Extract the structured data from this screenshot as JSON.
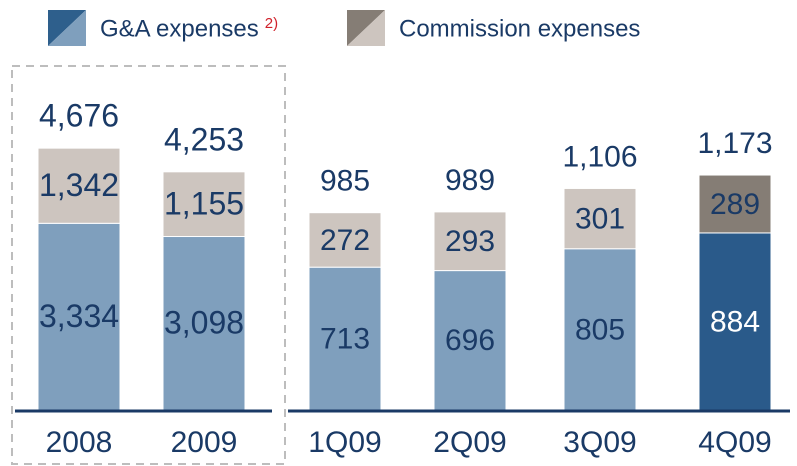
{
  "legend": [
    {
      "name": "G&A expenses",
      "note": "2)",
      "colors": [
        "#2e5f8c",
        "#7f9fbd"
      ]
    },
    {
      "name": "Commission expenses",
      "colors": [
        "#857d75",
        "#cdc5bf"
      ]
    }
  ],
  "chart_data": [
    {
      "type": "bar",
      "stacked": true,
      "categories": [
        "2008",
        "2009"
      ],
      "ylim": [
        0,
        5000
      ],
      "series": [
        {
          "colors": [
            "#7f9fbd",
            "#7f9fbd"
          ],
          "values": [
            3334,
            3098
          ],
          "value_labels": [
            "3,334",
            "3,098"
          ]
        },
        {
          "colors": [
            "#cdc5bf",
            "#cdc5bf"
          ],
          "values": [
            1342,
            1155
          ],
          "value_labels": [
            "1,342",
            "1,155"
          ]
        }
      ],
      "totals": [
        4676,
        4253
      ],
      "total_labels": [
        "4,676",
        "4,253"
      ]
    },
    {
      "type": "bar",
      "stacked": true,
      "categories": [
        "1Q09",
        "2Q09",
        "3Q09",
        "4Q09"
      ],
      "ylim": [
        0,
        1300
      ],
      "series": [
        {
          "colors": [
            "#7f9fbd",
            "#7f9fbd",
            "#7f9fbd",
            "#2a5a8a"
          ],
          "values": [
            713,
            696,
            805,
            884
          ]
        },
        {
          "colors": [
            "#cdc5bf",
            "#cdc5bf",
            "#cdc5bf",
            "#857d75"
          ],
          "values": [
            272,
            293,
            301,
            289
          ]
        }
      ],
      "totals": [
        985,
        989,
        1106,
        1173
      ],
      "total_labels": [
        "985",
        "989",
        "1,106",
        "1,173"
      ]
    }
  ]
}
